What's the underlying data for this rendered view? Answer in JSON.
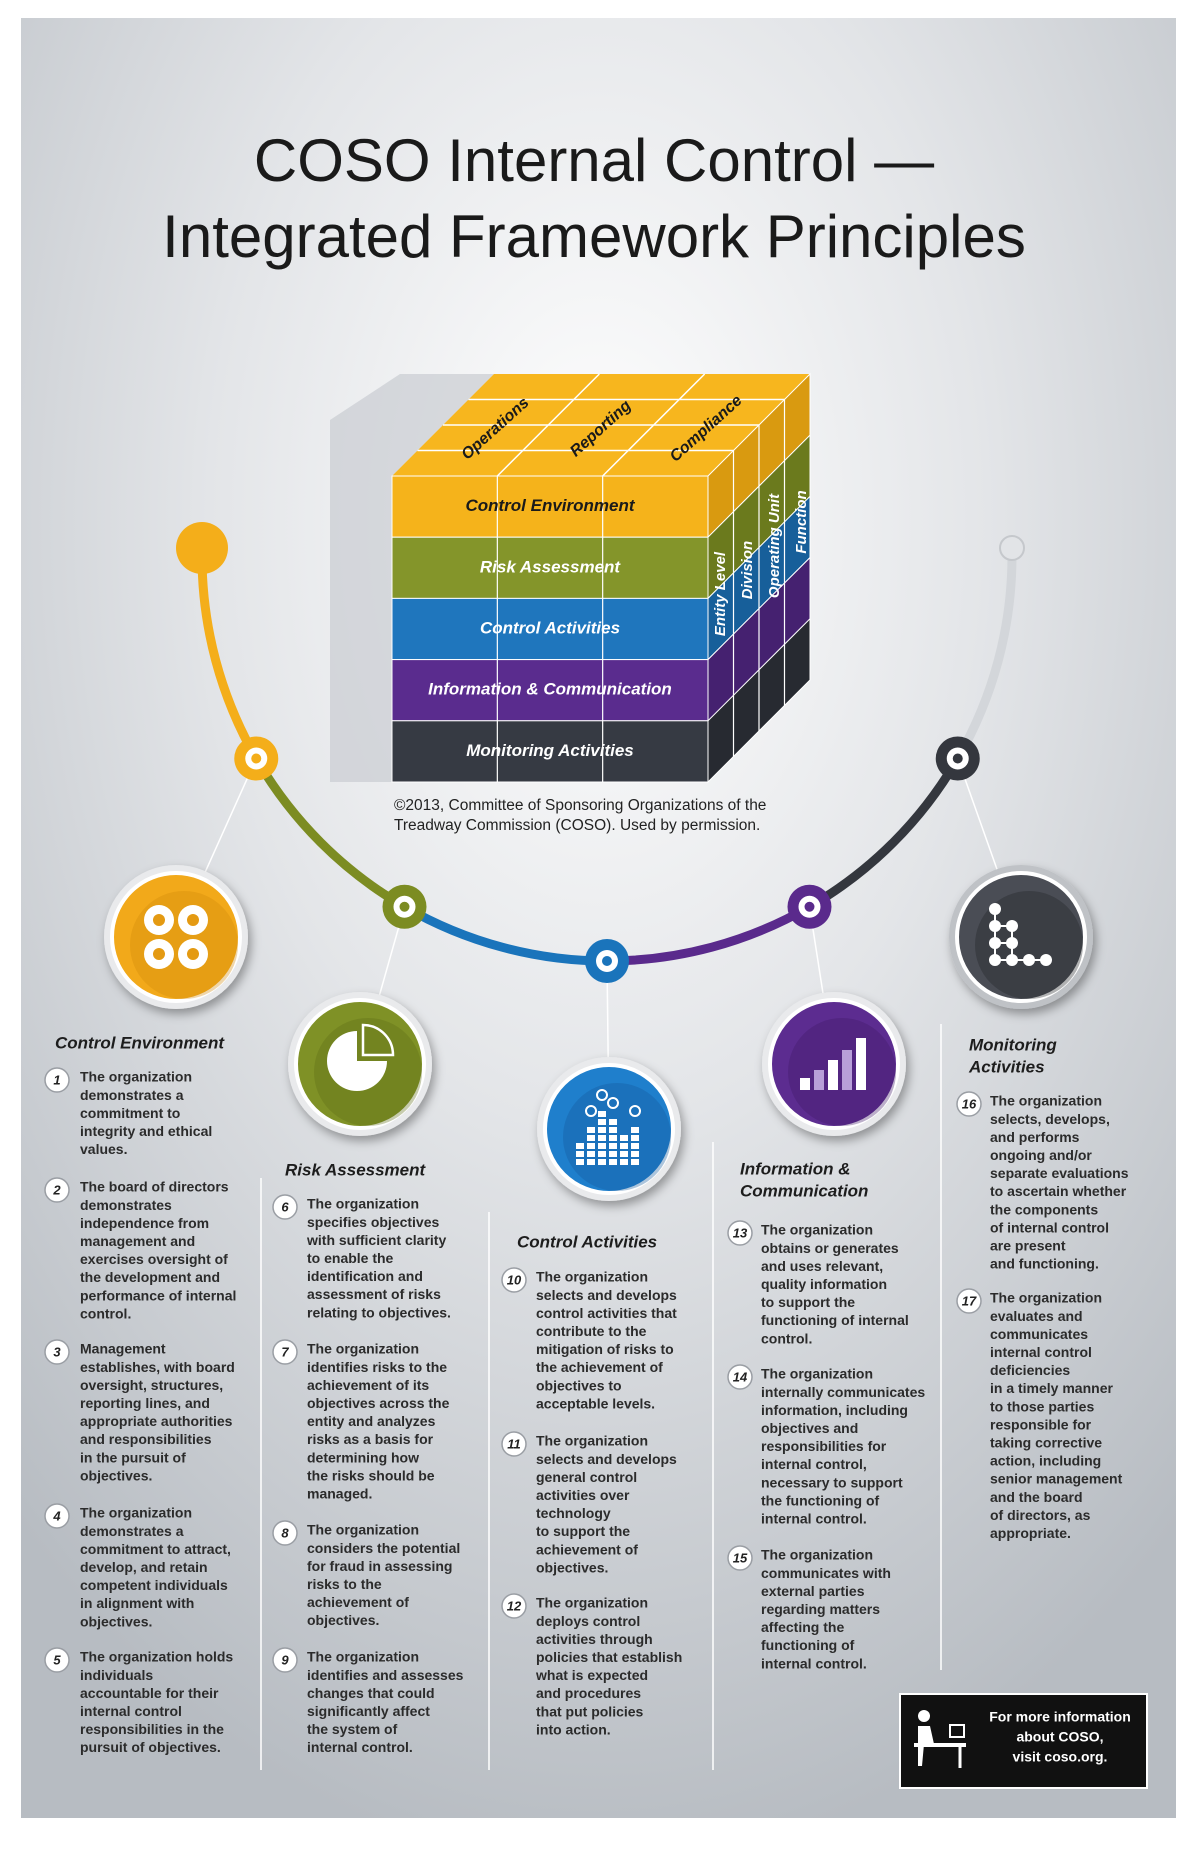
{
  "header": {
    "title": [
      "COSO Internal Control —",
      "Integrated Framework Principles"
    ]
  },
  "cube": {
    "top_labels": [
      "Operations",
      "Reporting",
      "Compliance"
    ],
    "rows": [
      "Control Environment",
      "Risk Assessment",
      "Control Activities",
      "Information & Communication",
      "Monitoring Activities"
    ],
    "side_labels": [
      "Entity Level",
      "Division",
      "Operating Unit",
      "Function"
    ],
    "copyright": [
      "©2013, Committee of Sponsoring Organizations of the",
      "Treadway Commission (COSO). Used by permission."
    ]
  },
  "components": [
    {
      "title": [
        "Control Environment"
      ],
      "principles": [
        {
          "number": 1,
          "lines": [
            "The organization",
            "demonstrates a",
            "commitment to",
            "integrity and ethical",
            "values."
          ]
        },
        {
          "number": 2,
          "lines": [
            "The board of directors",
            "demonstrates",
            "independence from",
            "management and",
            "exercises oversight of",
            "the development and",
            "performance of internal",
            "control."
          ]
        },
        {
          "number": 3,
          "lines": [
            "Management",
            "establishes, with board",
            "oversight, structures,",
            "reporting lines, and",
            "appropriate authorities",
            "and responsibilities",
            "in the pursuit of",
            "objectives."
          ]
        },
        {
          "number": 4,
          "lines": [
            "The organization",
            "demonstrates a",
            "commitment to attract,",
            "develop, and retain",
            "competent individuals",
            "in alignment with",
            "objectives."
          ]
        },
        {
          "number": 5,
          "lines": [
            "The organization holds",
            "individuals",
            "accountable for their",
            "internal control",
            "responsibilities in the",
            "pursuit of objectives."
          ]
        }
      ]
    },
    {
      "title": [
        "Risk Assessment"
      ],
      "principles": [
        {
          "number": 6,
          "lines": [
            "The organization",
            "specifies objectives",
            "with sufficient clarity",
            "to enable the",
            "identification and",
            "assessment of risks",
            "relating to objectives."
          ]
        },
        {
          "number": 7,
          "lines": [
            "The organization",
            "identifies risks to the",
            "achievement of its",
            "objectives across the",
            "entity and analyzes",
            "risks as a basis for",
            "determining how",
            "the risks should be",
            "managed."
          ]
        },
        {
          "number": 8,
          "lines": [
            "The organization",
            "considers the potential",
            "for fraud in assessing",
            "risks to the",
            "achievement of",
            "objectives."
          ]
        },
        {
          "number": 9,
          "lines": [
            "The organization",
            "identifies and assesses",
            "changes that could",
            "significantly affect",
            "the system of",
            "internal control."
          ]
        }
      ]
    },
    {
      "title": [
        "Control Activities"
      ],
      "principles": [
        {
          "number": 10,
          "lines": [
            "The organization",
            "selects and develops",
            "control activities that",
            "contribute to the",
            "mitigation of risks to",
            "the achievement of",
            "objectives to",
            "acceptable levels."
          ]
        },
        {
          "number": 11,
          "lines": [
            "The organization",
            "selects and develops",
            "general control",
            "activities over",
            "technology",
            "to support the",
            "achievement of",
            "objectives."
          ]
        },
        {
          "number": 12,
          "lines": [
            "The organization",
            "deploys control",
            "activities through",
            "policies that establish",
            "what is expected",
            "and procedures",
            "that put policies",
            "into action."
          ]
        }
      ]
    },
    {
      "title": [
        "Information &",
        "Communication"
      ],
      "principles": [
        {
          "number": 13,
          "lines": [
            "The organization",
            "obtains or generates",
            "and uses relevant,",
            "quality information",
            "to support the",
            "functioning of internal",
            "control."
          ]
        },
        {
          "number": 14,
          "lines": [
            "The organization",
            "internally communicates",
            "information, including",
            "objectives and",
            "responsibilities for",
            "internal control,",
            "necessary to support",
            "the functioning of",
            "internal control."
          ]
        },
        {
          "number": 15,
          "lines": [
            "The organization",
            "communicates with",
            "external parties",
            "regarding matters",
            "affecting the",
            "functioning of",
            "internal control."
          ]
        }
      ]
    },
    {
      "title": [
        "Monitoring",
        "Activities"
      ],
      "principles": [
        {
          "number": 16,
          "lines": [
            "The organization",
            "selects, develops,",
            "and performs",
            "ongoing and/or",
            "separate evaluations",
            "to ascertain whether",
            "the components",
            "of internal control",
            "are present",
            "and functioning."
          ]
        },
        {
          "number": 17,
          "lines": [
            "The organization",
            "evaluates and",
            "communicates",
            "internal control",
            "deficiencies",
            "in a timely manner",
            "to those parties",
            "responsible for",
            "taking corrective",
            "action, including",
            "senior management",
            "and the board",
            "of directors, as",
            "appropriate."
          ]
        }
      ]
    }
  ],
  "footer": {
    "lines": [
      "For more information",
      "about COSO,",
      "visit coso.org."
    ]
  }
}
